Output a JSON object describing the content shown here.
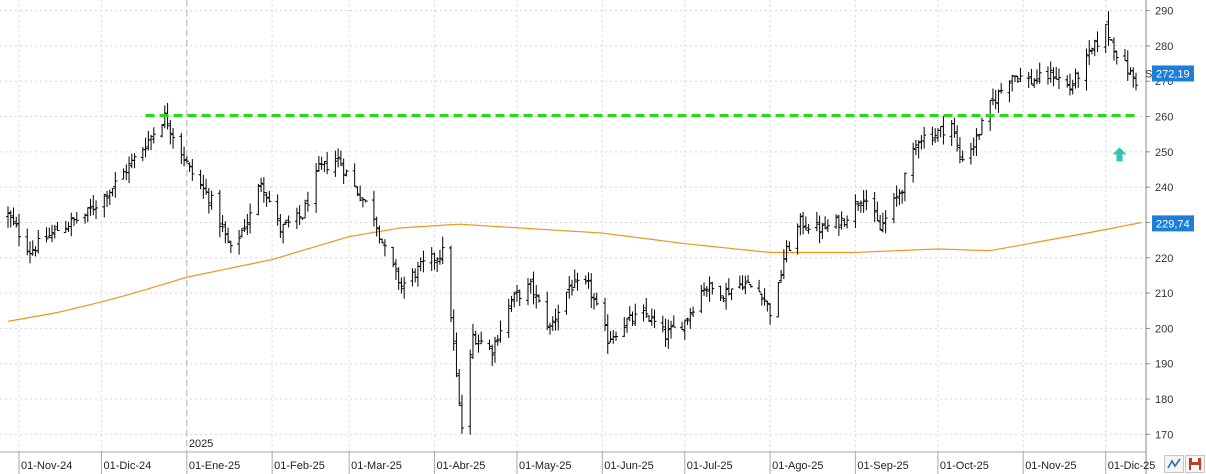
{
  "chart_data": {
    "type": "ohlc",
    "date_range": [
      "2024-10-28",
      "2025-12-12"
    ],
    "ylim": [
      165,
      293
    ],
    "y_ticks": [
      170,
      180,
      190,
      200,
      210,
      220,
      230,
      240,
      250,
      260,
      270,
      280,
      290
    ],
    "x_ticks": [
      {
        "date": "2024-11-01",
        "label": "01-Nov-24"
      },
      {
        "date": "2024-12-01",
        "label": "01-Dic-24"
      },
      {
        "date": "2025-01-01",
        "label": "01-Ene-25"
      },
      {
        "date": "2025-02-01",
        "label": "01-Feb-25"
      },
      {
        "date": "2025-03-01",
        "label": "01-Mar-25"
      },
      {
        "date": "2025-04-01",
        "label": "01-Abr-25"
      },
      {
        "date": "2025-05-01",
        "label": "01-May-25"
      },
      {
        "date": "2025-06-01",
        "label": "01-Jun-25"
      },
      {
        "date": "2025-07-01",
        "label": "01-Jul-25"
      },
      {
        "date": "2025-08-01",
        "label": "01-Ago-25"
      },
      {
        "date": "2025-09-01",
        "label": "01-Sep-25"
      },
      {
        "date": "2025-10-01",
        "label": "01-Oct-25"
      },
      {
        "date": "2025-11-01",
        "label": "01-Nov-25"
      },
      {
        "date": "2025-12-01",
        "label": "01-Dic-25"
      }
    ],
    "year_divider": {
      "date": "2025-01-01",
      "label": "2025"
    },
    "price_keypoints": [
      [
        "2024-10-28",
        232
      ],
      [
        "2024-11-05",
        222
      ],
      [
        "2024-11-15",
        228
      ],
      [
        "2024-11-25",
        232
      ],
      [
        "2024-12-05",
        240
      ],
      [
        "2024-12-15",
        250
      ],
      [
        "2024-12-24",
        260
      ],
      [
        "2025-01-02",
        245
      ],
      [
        "2025-01-10",
        236
      ],
      [
        "2025-01-17",
        222
      ],
      [
        "2025-01-24",
        232
      ],
      [
        "2025-01-28",
        242
      ],
      [
        "2025-02-04",
        228
      ],
      [
        "2025-02-12",
        232
      ],
      [
        "2025-02-18",
        245
      ],
      [
        "2025-02-25",
        248
      ],
      [
        "2025-03-03",
        240
      ],
      [
        "2025-03-10",
        232
      ],
      [
        "2025-03-14",
        222
      ],
      [
        "2025-03-20",
        212
      ],
      [
        "2025-03-28",
        218
      ],
      [
        "2025-04-05",
        222
      ],
      [
        "2025-04-08",
        195
      ],
      [
        "2025-04-10",
        178
      ],
      [
        "2025-04-11",
        172
      ],
      [
        "2025-04-15",
        198
      ],
      [
        "2025-04-22",
        194
      ],
      [
        "2025-04-29",
        208
      ],
      [
        "2025-05-06",
        212
      ],
      [
        "2025-05-13",
        200
      ],
      [
        "2025-05-20",
        212
      ],
      [
        "2025-05-27",
        212
      ],
      [
        "2025-06-03",
        197
      ],
      [
        "2025-06-10",
        202
      ],
      [
        "2025-06-17",
        204
      ],
      [
        "2025-06-24",
        198
      ],
      [
        "2025-07-01",
        202
      ],
      [
        "2025-07-08",
        212
      ],
      [
        "2025-07-15",
        210
      ],
      [
        "2025-07-22",
        213
      ],
      [
        "2025-07-29",
        210
      ],
      [
        "2025-08-02",
        203
      ],
      [
        "2025-08-06",
        220
      ],
      [
        "2025-08-12",
        230
      ],
      [
        "2025-08-20",
        228
      ],
      [
        "2025-08-28",
        231
      ],
      [
        "2025-09-04",
        238
      ],
      [
        "2025-09-10",
        228
      ],
      [
        "2025-09-18",
        240
      ],
      [
        "2025-09-24",
        254
      ],
      [
        "2025-09-30",
        255
      ],
      [
        "2025-10-06",
        258
      ],
      [
        "2025-10-09",
        248
      ],
      [
        "2025-10-14",
        252
      ],
      [
        "2025-10-20",
        263
      ],
      [
        "2025-10-28",
        272
      ],
      [
        "2025-11-04",
        270
      ],
      [
        "2025-11-12",
        272
      ],
      [
        "2025-11-18",
        268
      ],
      [
        "2025-11-24",
        276
      ],
      [
        "2025-12-01",
        285
      ],
      [
        "2025-12-05",
        278
      ],
      [
        "2025-12-10",
        272
      ],
      [
        "2025-12-12",
        270
      ]
    ],
    "sma_keypoints": [
      [
        "2024-10-28",
        202
      ],
      [
        "2024-11-15",
        204.5
      ],
      [
        "2024-12-01",
        207.5
      ],
      [
        "2024-12-15",
        210.5
      ],
      [
        "2025-01-01",
        214.5
      ],
      [
        "2025-02-01",
        219.5
      ],
      [
        "2025-03-01",
        226
      ],
      [
        "2025-03-20",
        228.5
      ],
      [
        "2025-04-10",
        229.5
      ],
      [
        "2025-05-01",
        228.5
      ],
      [
        "2025-06-01",
        227
      ],
      [
        "2025-07-01",
        224
      ],
      [
        "2025-08-01",
        221.5
      ],
      [
        "2025-09-01",
        221.5
      ],
      [
        "2025-10-01",
        222.5
      ],
      [
        "2025-10-20",
        222
      ],
      [
        "2025-11-10",
        225
      ],
      [
        "2025-12-01",
        228
      ],
      [
        "2025-12-14",
        230
      ]
    ],
    "resistance_level": 260.3,
    "arrow_marker": {
      "date": "2025-12-06",
      "value": 249
    },
    "last_price": 272.19,
    "last_price_label": "272,19",
    "sma_value": 229.74,
    "sma_value_label": "229,74",
    "last_price_axis_mark": "S",
    "colors": {
      "price": "#000000",
      "sma": "#f0961e",
      "resistance": "#22dd11",
      "badge": "#1c7ed6",
      "arrow": "#2ec4b6",
      "grid": "#d8d8d8"
    }
  }
}
